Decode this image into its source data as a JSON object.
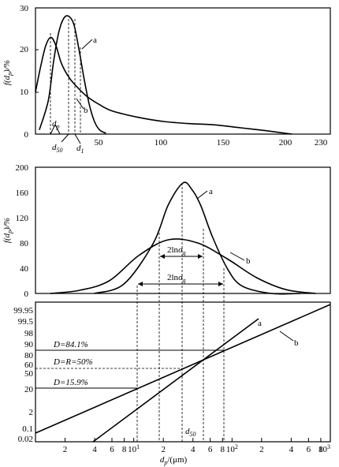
{
  "chart_data": [
    {
      "type": "line",
      "ylabel": "f(dp)/%",
      "xlim": [
        0,
        230
      ],
      "ylim": [
        0,
        30
      ],
      "xticks": [
        0,
        50,
        100,
        150,
        200,
        230
      ],
      "xtick_labels": [
        "",
        "50",
        "100",
        "150",
        "200",
        "230"
      ],
      "yticks": [
        0,
        10,
        20,
        30
      ],
      "ytick_labels": [
        "0",
        "10",
        "20",
        "30"
      ],
      "series": [
        {
          "name": "a",
          "x": [
            3,
            10,
            14,
            18,
            22,
            26,
            30,
            34,
            38,
            42,
            46,
            50,
            55
          ],
          "y": [
            1,
            8,
            17,
            24,
            27.5,
            28,
            26,
            20,
            13,
            7,
            3,
            1,
            0.2
          ]
        },
        {
          "name": "b",
          "x": [
            0,
            4,
            8,
            12,
            16,
            20,
            25,
            30,
            40,
            50,
            60,
            80,
            100,
            120,
            140,
            160,
            180,
            200
          ],
          "y": [
            10,
            16,
            21,
            23,
            21,
            17,
            14,
            12,
            9,
            7,
            5.5,
            4,
            3,
            2.5,
            2.2,
            1.5,
            0.8,
            0
          ]
        }
      ],
      "series_labels": [
        {
          "text": "a",
          "x": 47,
          "y": 21
        },
        {
          "text": "b",
          "x": 37,
          "y": 6
        }
      ],
      "markers": [
        {
          "label": "dp",
          "x": 12
        },
        {
          "label": "d50",
          "x": 18
        },
        {
          "label": "d1",
          "x": 24
        }
      ],
      "marker_x_extra": [
        28
      ]
    },
    {
      "type": "line",
      "ylabel": "f(dp)/%",
      "xlim": [
        0,
        1
      ],
      "ylim": [
        0,
        200
      ],
      "yticks": [
        0,
        40,
        80,
        120,
        160,
        200
      ],
      "ytick_labels": [
        "0",
        "40",
        "80",
        "120",
        "160",
        "200"
      ],
      "series": [
        {
          "name": "a",
          "x": [
            0.2,
            0.3,
            0.4,
            0.45,
            0.5,
            0.53,
            0.56,
            0.6,
            0.65,
            0.7,
            0.8,
            0.9
          ],
          "y": [
            0,
            15,
            80,
            140,
            175,
            165,
            140,
            90,
            40,
            12,
            0,
            0
          ]
        },
        {
          "name": "b",
          "x": [
            0.05,
            0.15,
            0.25,
            0.35,
            0.45,
            0.55,
            0.65,
            0.75,
            0.85,
            0.95
          ],
          "y": [
            0,
            5,
            20,
            60,
            85,
            80,
            55,
            25,
            6,
            0
          ]
        }
      ],
      "series_labels": [
        {
          "text": "a",
          "x": 0.6,
          "y": 165
        },
        {
          "text": "b",
          "x": 0.76,
          "y": 70
        }
      ],
      "annotations": [
        "2lnσg",
        "2lnσg"
      ]
    },
    {
      "type": "line",
      "xlabel": "dp/(μm)",
      "x_scale": "log",
      "y_scale": "probability",
      "xlim": [
        1,
        1000
      ],
      "y_tick_labels": [
        "0.02",
        "0.1",
        "2",
        "20",
        "50",
        "60",
        "80",
        "90",
        "98",
        "99.5",
        "99.95"
      ],
      "x_tick_labels": [
        "2",
        "4",
        "6",
        "8",
        "10^1",
        "2",
        "4",
        "6",
        "8",
        "10^2",
        "2",
        "4",
        "6",
        "8",
        "10^3"
      ],
      "series": [
        {
          "name": "a",
          "x": [
            4.6,
            60
          ],
          "y": [
            0.02,
            99.5
          ]
        },
        {
          "name": "b",
          "x": [
            1,
            1000
          ],
          "y": [
            0.1,
            99.95
          ]
        }
      ],
      "series_labels": [
        {
          "text": "a",
          "x": 95,
          "y": 99.5
        },
        {
          "text": "b",
          "x": 300,
          "y": 90
        }
      ],
      "reference_lines": [
        {
          "label": "D=84.1%"
        },
        {
          "label": "D=R=50%"
        },
        {
          "label": "D=15.9%"
        }
      ],
      "d50_label": "d50"
    }
  ]
}
